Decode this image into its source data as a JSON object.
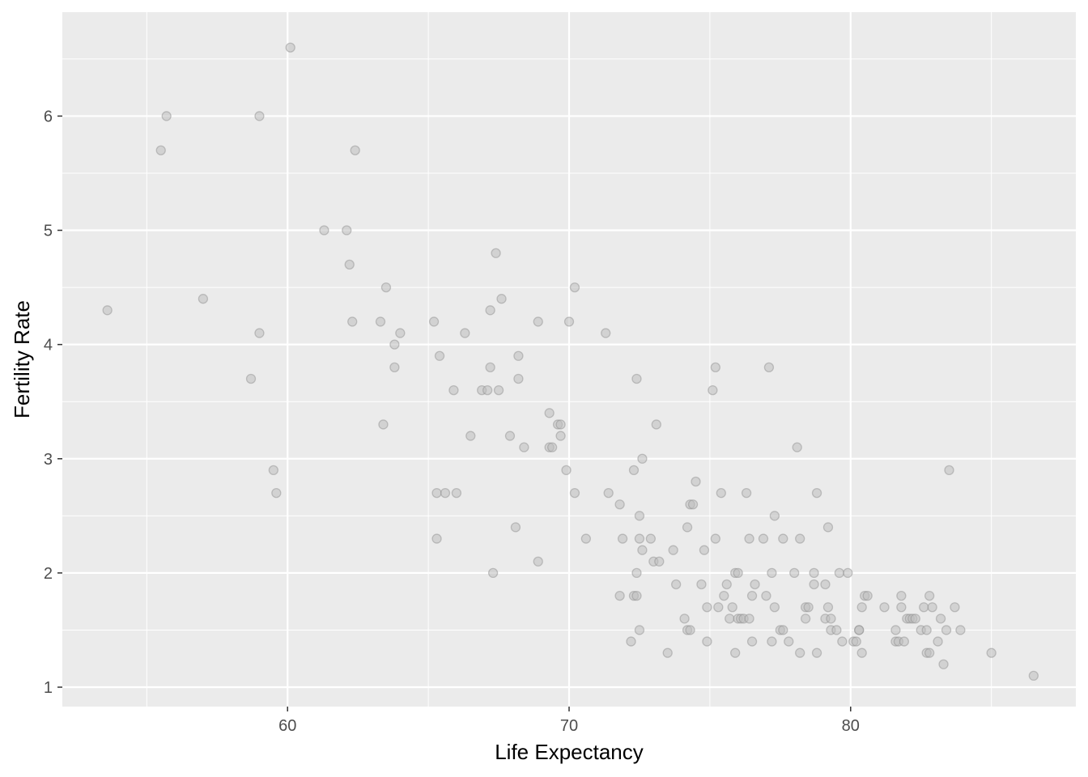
{
  "chart_data": {
    "type": "scatter",
    "xlabel": "Life Expectancy",
    "ylabel": "Fertility Rate",
    "xlim": [
      52.0,
      88.0
    ],
    "ylim": [
      0.83,
      6.91
    ],
    "x_ticks": [
      60,
      70,
      80
    ],
    "y_ticks": [
      1,
      2,
      3,
      4,
      5,
      6
    ],
    "grid": true,
    "legend": "none",
    "colors": {
      "panel": "#ebebeb",
      "grid": "#ffffff",
      "point_fill": "#bdbdbd",
      "point_stroke": "#8c8c8c",
      "tick_text": "#4d4d4d",
      "tick_mark": "#333333",
      "title_text": "#000000"
    },
    "points": [
      [
        53.6,
        4.3
      ],
      [
        55.5,
        5.7
      ],
      [
        55.7,
        6.0
      ],
      [
        57.0,
        4.4
      ],
      [
        58.7,
        3.7
      ],
      [
        59.0,
        6.0
      ],
      [
        59.0,
        4.1
      ],
      [
        59.5,
        2.9
      ],
      [
        59.6,
        2.7
      ],
      [
        60.1,
        6.6
      ],
      [
        61.3,
        5.0
      ],
      [
        62.1,
        5.0
      ],
      [
        62.2,
        4.7
      ],
      [
        62.3,
        4.2
      ],
      [
        62.4,
        5.7
      ],
      [
        63.3,
        4.2
      ],
      [
        63.4,
        3.3
      ],
      [
        63.5,
        4.5
      ],
      [
        63.8,
        4.0
      ],
      [
        63.8,
        3.8
      ],
      [
        64.0,
        4.1
      ],
      [
        65.2,
        4.2
      ],
      [
        65.3,
        2.7
      ],
      [
        65.3,
        2.3
      ],
      [
        65.4,
        3.9
      ],
      [
        65.6,
        2.7
      ],
      [
        65.9,
        3.6
      ],
      [
        66.0,
        2.7
      ],
      [
        66.3,
        4.1
      ],
      [
        66.5,
        3.2
      ],
      [
        66.9,
        3.6
      ],
      [
        67.1,
        3.6
      ],
      [
        67.2,
        4.3
      ],
      [
        67.2,
        3.8
      ],
      [
        67.3,
        2.0
      ],
      [
        67.4,
        4.8
      ],
      [
        67.5,
        3.6
      ],
      [
        67.6,
        4.4
      ],
      [
        67.9,
        3.2
      ],
      [
        68.1,
        2.4
      ],
      [
        68.2,
        3.7
      ],
      [
        68.2,
        3.9
      ],
      [
        68.4,
        3.1
      ],
      [
        68.9,
        4.2
      ],
      [
        68.9,
        2.1
      ],
      [
        69.3,
        3.4
      ],
      [
        69.3,
        3.1
      ],
      [
        69.4,
        3.1
      ],
      [
        69.6,
        3.3
      ],
      [
        69.7,
        3.3
      ],
      [
        69.7,
        3.2
      ],
      [
        69.9,
        2.9
      ],
      [
        70.0,
        4.2
      ],
      [
        70.2,
        4.5
      ],
      [
        70.2,
        2.7
      ],
      [
        70.6,
        2.3
      ],
      [
        71.3,
        4.1
      ],
      [
        71.4,
        2.7
      ],
      [
        71.8,
        1.8
      ],
      [
        71.8,
        2.6
      ],
      [
        71.9,
        2.3
      ],
      [
        72.2,
        1.4
      ],
      [
        72.3,
        2.9
      ],
      [
        72.3,
        1.8
      ],
      [
        72.4,
        2.0
      ],
      [
        72.4,
        1.8
      ],
      [
        72.4,
        3.7
      ],
      [
        72.5,
        2.3
      ],
      [
        72.5,
        1.5
      ],
      [
        72.5,
        2.5
      ],
      [
        72.6,
        3.0
      ],
      [
        72.6,
        2.2
      ],
      [
        72.9,
        2.3
      ],
      [
        73.0,
        2.1
      ],
      [
        73.1,
        3.3
      ],
      [
        73.2,
        2.1
      ],
      [
        73.5,
        1.3
      ],
      [
        73.7,
        2.2
      ],
      [
        73.8,
        1.9
      ],
      [
        74.1,
        1.6
      ],
      [
        74.2,
        1.5
      ],
      [
        74.2,
        2.4
      ],
      [
        74.3,
        1.5
      ],
      [
        74.3,
        2.6
      ],
      [
        74.4,
        2.6
      ],
      [
        74.5,
        2.8
      ],
      [
        74.7,
        1.9
      ],
      [
        74.8,
        2.2
      ],
      [
        74.9,
        1.4
      ],
      [
        74.9,
        1.7
      ],
      [
        75.1,
        3.6
      ],
      [
        75.2,
        3.8
      ],
      [
        75.2,
        2.3
      ],
      [
        75.3,
        1.7
      ],
      [
        75.4,
        2.7
      ],
      [
        75.5,
        1.8
      ],
      [
        75.6,
        1.9
      ],
      [
        75.7,
        1.6
      ],
      [
        75.8,
        1.7
      ],
      [
        75.9,
        2.0
      ],
      [
        75.9,
        1.3
      ],
      [
        76.0,
        2.0
      ],
      [
        76.0,
        1.6
      ],
      [
        76.1,
        1.6
      ],
      [
        76.2,
        1.6
      ],
      [
        76.3,
        2.7
      ],
      [
        76.4,
        2.3
      ],
      [
        76.4,
        1.6
      ],
      [
        76.5,
        1.8
      ],
      [
        76.5,
        1.4
      ],
      [
        76.6,
        1.9
      ],
      [
        76.9,
        2.3
      ],
      [
        77.0,
        1.8
      ],
      [
        77.1,
        3.8
      ],
      [
        77.2,
        2.0
      ],
      [
        77.2,
        1.4
      ],
      [
        77.3,
        2.5
      ],
      [
        77.3,
        1.7
      ],
      [
        77.5,
        1.5
      ],
      [
        77.6,
        2.3
      ],
      [
        77.6,
        1.5
      ],
      [
        77.8,
        1.4
      ],
      [
        78.0,
        2.0
      ],
      [
        78.1,
        3.1
      ],
      [
        78.2,
        2.3
      ],
      [
        78.2,
        1.3
      ],
      [
        78.4,
        1.7
      ],
      [
        78.4,
        1.6
      ],
      [
        78.5,
        1.7
      ],
      [
        78.7,
        1.9
      ],
      [
        78.7,
        2.0
      ],
      [
        78.8,
        1.3
      ],
      [
        78.8,
        2.7
      ],
      [
        79.1,
        1.6
      ],
      [
        79.1,
        1.9
      ],
      [
        79.2,
        2.4
      ],
      [
        79.2,
        1.7
      ],
      [
        79.3,
        1.5
      ],
      [
        79.3,
        1.6
      ],
      [
        79.5,
        1.5
      ],
      [
        79.6,
        2.0
      ],
      [
        79.7,
        1.4
      ],
      [
        79.9,
        2.0
      ],
      [
        80.1,
        1.4
      ],
      [
        80.2,
        1.4
      ],
      [
        80.3,
        1.5
      ],
      [
        80.3,
        1.5
      ],
      [
        80.4,
        1.7
      ],
      [
        80.4,
        1.3
      ],
      [
        80.5,
        1.8
      ],
      [
        80.6,
        1.8
      ],
      [
        81.2,
        1.7
      ],
      [
        81.6,
        1.5
      ],
      [
        81.6,
        1.4
      ],
      [
        81.7,
        1.4
      ],
      [
        81.8,
        1.8
      ],
      [
        81.8,
        1.7
      ],
      [
        81.9,
        1.4
      ],
      [
        82.0,
        1.6
      ],
      [
        82.1,
        1.6
      ],
      [
        82.2,
        1.6
      ],
      [
        82.3,
        1.6
      ],
      [
        82.5,
        1.5
      ],
      [
        82.6,
        1.7
      ],
      [
        82.7,
        1.5
      ],
      [
        82.7,
        1.3
      ],
      [
        82.8,
        1.3
      ],
      [
        82.8,
        1.8
      ],
      [
        82.9,
        1.7
      ],
      [
        83.1,
        1.4
      ],
      [
        83.2,
        1.6
      ],
      [
        83.3,
        1.2
      ],
      [
        83.4,
        1.5
      ],
      [
        83.5,
        2.9
      ],
      [
        83.7,
        1.7
      ],
      [
        83.9,
        1.5
      ],
      [
        85.0,
        1.3
      ],
      [
        86.5,
        1.1
      ]
    ]
  }
}
